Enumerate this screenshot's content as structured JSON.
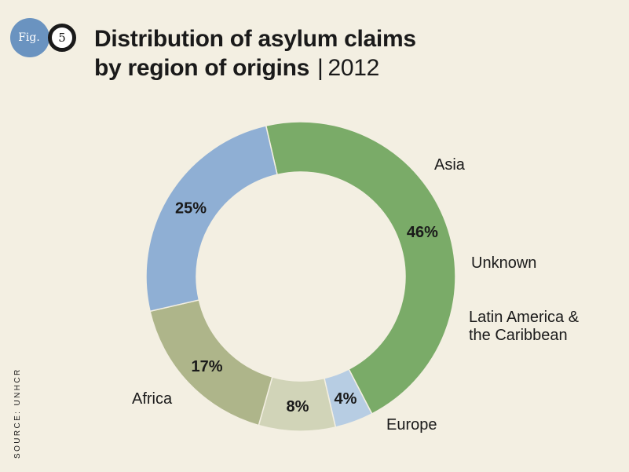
{
  "figure": {
    "fig_label": "Fig.",
    "fig_number": "5"
  },
  "title": {
    "line1": "Distribution of asylum claims",
    "line2": "by region of origins",
    "separator": "|",
    "year": "2012"
  },
  "source": "SOURCE: UNHCR",
  "chart_data": {
    "type": "pie",
    "style": "donut",
    "start_angle_deg": 103,
    "direction": "clockwise",
    "series": [
      {
        "label": "Asia",
        "value": 46,
        "value_label": "46%",
        "color": "#7aab68"
      },
      {
        "label": "Unknown",
        "value": 4,
        "value_label": "4%",
        "color": "#b7cde3"
      },
      {
        "label": "Latin America & the Caribbean",
        "label_lines": [
          "Latin America &",
          "the Caribbean"
        ],
        "value": 8,
        "value_label": "8%",
        "color": "#d1d4b8"
      },
      {
        "label": "Europe",
        "value": 17,
        "value_label": "17%",
        "color": "#aeb58a"
      },
      {
        "label": "Africa",
        "value": 25,
        "value_label": "25%",
        "color": "#8fafd4"
      }
    ]
  }
}
